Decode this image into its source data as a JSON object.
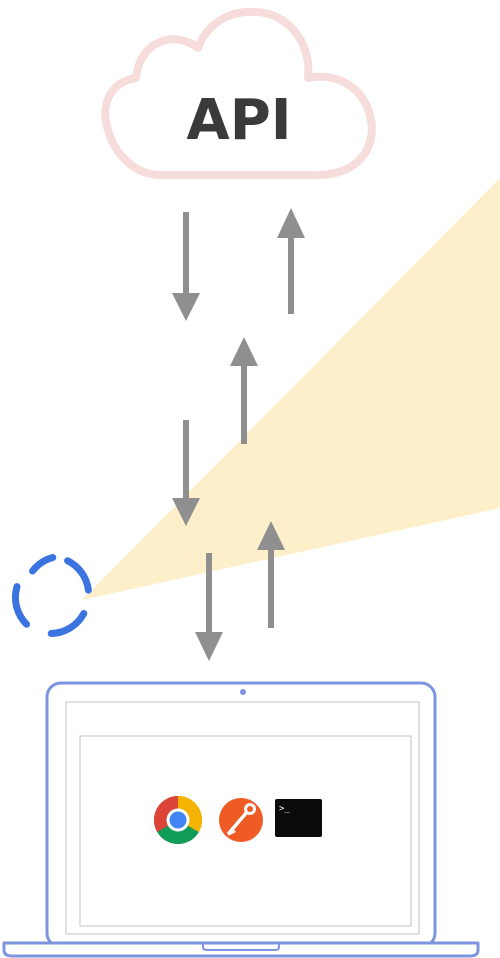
{
  "cloud": {
    "label": "API"
  },
  "colors": {
    "cloud_stroke": "#f7dcdc",
    "arrow": "#8f8f8f",
    "beam": "#fdefc9",
    "proxy_ring": "#3b73e0",
    "laptop_stroke": "#7d95df",
    "screen_stroke": "#d6d6d6"
  },
  "icons": {
    "proxy": "proxy-ring-icon",
    "browser": "chrome-icon",
    "api_client": "postman-icon",
    "terminal": "terminal-icon"
  },
  "terminal": {
    "prompt": ">_"
  }
}
